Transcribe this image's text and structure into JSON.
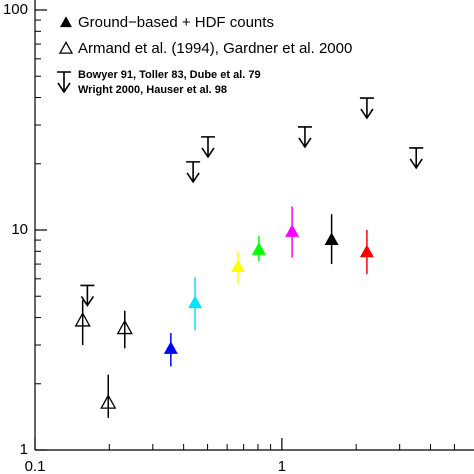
{
  "chart_data": {
    "type": "scatter",
    "xlog": true,
    "ylog": true,
    "xlim": [
      0.1,
      6
    ],
    "ylim": [
      1,
      100
    ],
    "xticks": [
      0.1,
      1
    ],
    "yticks": [
      1,
      10,
      100
    ],
    "xminor": [
      0.2,
      0.3,
      0.4,
      0.5,
      0.6,
      0.7,
      0.8,
      0.9,
      2,
      3,
      4,
      5
    ],
    "yminor": [
      2,
      3,
      4,
      5,
      6,
      7,
      8,
      9,
      20,
      30,
      40,
      50,
      60,
      70,
      80,
      90
    ],
    "series": [
      {
        "name": "Ground−based + HDF counts",
        "marker": "filled-triangle",
        "colors": [
          "#0000ff",
          "#00e5ff",
          "#ffff00",
          "#00ff00",
          "#ff00ff",
          "#000000",
          "#ff0000"
        ],
        "x": [
          0.355,
          0.445,
          0.664,
          0.807,
          1.1,
          1.59,
          2.21
        ],
        "y": [
          2.91,
          4.7,
          6.86,
          8.2,
          9.9,
          9.1,
          8.0
        ],
        "y_upper": [
          3.4,
          6.1,
          8.0,
          9.4,
          12.8,
          11.8,
          10.0
        ],
        "y_lower": [
          2.4,
          3.5,
          5.7,
          7.2,
          7.5,
          7.0,
          6.3
        ]
      },
      {
        "name": "Armand et al. (1994), Gardner et al. 2000",
        "marker": "open-triangle",
        "color": "#000000",
        "x": [
          0.156,
          0.198,
          0.231
        ],
        "y": [
          3.9,
          1.65,
          3.6
        ],
        "y_upper": [
          4.8,
          2.2,
          4.3
        ],
        "y_lower": [
          3.0,
          1.4,
          2.9
        ]
      },
      {
        "name_lines": [
          "Bowyer 91, Toller 83, Dube et al. 79",
          "Wright 2000, Hauser et al. 98"
        ],
        "marker": "upper-limit",
        "color": "#000000",
        "x": [
          0.163,
          0.437,
          0.502,
          1.24,
          2.21,
          3.5
        ],
        "y": [
          5.6,
          20.4,
          26.5,
          29.4,
          39.8,
          23.6
        ]
      }
    ]
  }
}
